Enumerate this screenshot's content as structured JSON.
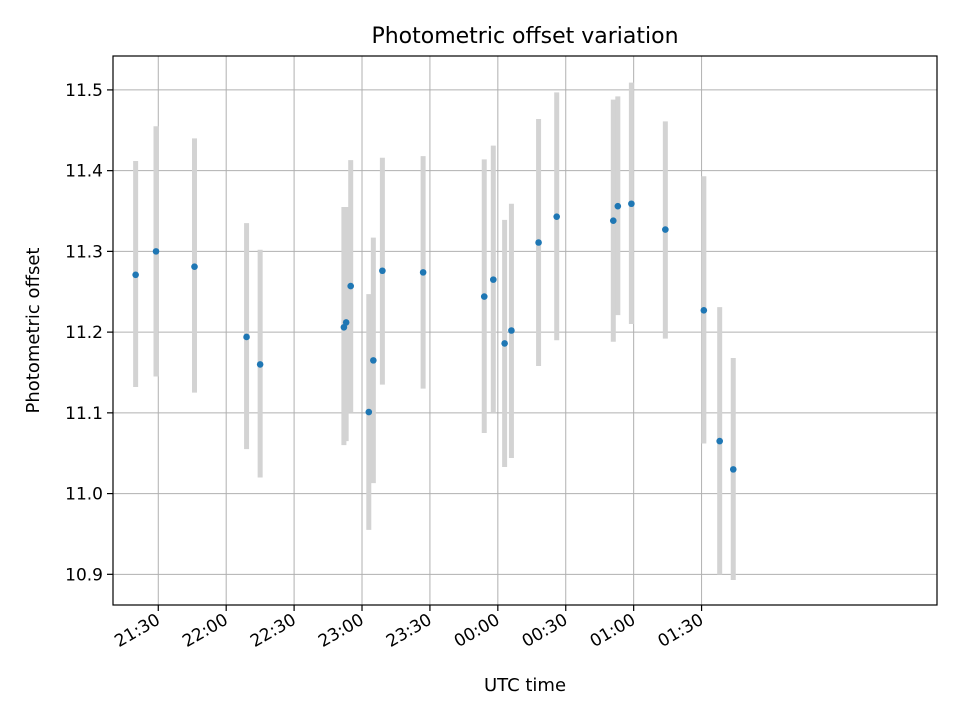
{
  "chart_data": {
    "type": "scatter",
    "title": "Photometric offset variation",
    "xlabel": "UTC time",
    "ylabel": "Photometric offset",
    "x_ticks": [
      "21:30",
      "22:00",
      "22:30",
      "23:00",
      "23:30",
      "00:00",
      "00:30",
      "01:00",
      "01:30"
    ],
    "y_ticks": [
      "10.9",
      "11.0",
      "11.1",
      "11.2",
      "11.3",
      "11.4",
      "11.5"
    ],
    "xlim": [
      "21:10",
      "03:14"
    ],
    "ylim": [
      10.862,
      11.542
    ],
    "grid": true,
    "errorbar_color": "#d3d3d3",
    "marker_color": "#1f77b4",
    "points": [
      {
        "x": "21:20",
        "y": 11.271,
        "ylo": 11.132,
        "yhi": 11.412
      },
      {
        "x": "21:29",
        "y": 11.3,
        "ylo": 11.145,
        "yhi": 11.455
      },
      {
        "x": "21:46",
        "y": 11.281,
        "ylo": 11.125,
        "yhi": 11.44
      },
      {
        "x": "22:09",
        "y": 11.194,
        "ylo": 11.055,
        "yhi": 11.335
      },
      {
        "x": "22:15",
        "y": 11.16,
        "ylo": 11.02,
        "yhi": 11.302
      },
      {
        "x": "22:52",
        "y": 11.206,
        "ylo": 11.06,
        "yhi": 11.355
      },
      {
        "x": "22:53",
        "y": 11.212,
        "ylo": 11.065,
        "yhi": 11.355
      },
      {
        "x": "22:55",
        "y": 11.257,
        "ylo": 11.1,
        "yhi": 11.413
      },
      {
        "x": "23:03",
        "y": 11.101,
        "ylo": 10.955,
        "yhi": 11.247
      },
      {
        "x": "23:05",
        "y": 11.165,
        "ylo": 11.013,
        "yhi": 11.317
      },
      {
        "x": "23:09",
        "y": 11.276,
        "ylo": 11.135,
        "yhi": 11.416
      },
      {
        "x": "23:27",
        "y": 11.274,
        "ylo": 11.13,
        "yhi": 11.418
      },
      {
        "x": "23:54",
        "y": 11.244,
        "ylo": 11.075,
        "yhi": 11.414
      },
      {
        "x": "23:58",
        "y": 11.265,
        "ylo": 11.1,
        "yhi": 11.431
      },
      {
        "x": "00:03",
        "y": 11.186,
        "ylo": 11.033,
        "yhi": 11.339
      },
      {
        "x": "00:06",
        "y": 11.202,
        "ylo": 11.044,
        "yhi": 11.359
      },
      {
        "x": "00:18",
        "y": 11.311,
        "ylo": 11.158,
        "yhi": 11.464
      },
      {
        "x": "00:26",
        "y": 11.343,
        "ylo": 11.19,
        "yhi": 11.497
      },
      {
        "x": "00:51",
        "y": 11.338,
        "ylo": 11.188,
        "yhi": 11.488
      },
      {
        "x": "00:53",
        "y": 11.356,
        "ylo": 11.221,
        "yhi": 11.492
      },
      {
        "x": "00:59",
        "y": 11.359,
        "ylo": 11.21,
        "yhi": 11.509
      },
      {
        "x": "01:14",
        "y": 11.327,
        "ylo": 11.192,
        "yhi": 11.461
      },
      {
        "x": "01:31",
        "y": 11.227,
        "ylo": 11.062,
        "yhi": 11.393
      },
      {
        "x": "01:38",
        "y": 11.065,
        "ylo": 10.9,
        "yhi": 11.231
      },
      {
        "x": "01:44",
        "y": 11.03,
        "ylo": 10.893,
        "yhi": 11.168
      }
    ]
  }
}
